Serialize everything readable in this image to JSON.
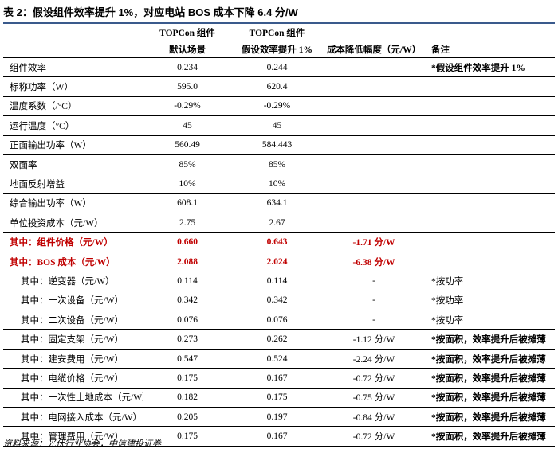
{
  "title": "表 2：假设组件效率提升 1%，对应电站 BOS 成本下降 6.4 分/W",
  "header": {
    "row1": [
      "",
      "TOPCon 组件",
      "TOPCon 组件",
      "",
      ""
    ],
    "row2": [
      "",
      "默认场景",
      "假设效率提升 1%",
      "成本降低幅度（元/W）",
      "备注"
    ]
  },
  "rows": [
    {
      "name": "组件效率",
      "c1": "0.234",
      "c2": "0.244",
      "c3": "",
      "c4": "*假设组件效率提升 1%",
      "style": "note-bold"
    },
    {
      "name": "标称功率（W）",
      "c1": "595.0",
      "c2": "620.4",
      "c3": "",
      "c4": ""
    },
    {
      "name": "温度系数（/°C）",
      "c1": "-0.29%",
      "c2": "-0.29%",
      "c3": "",
      "c4": ""
    },
    {
      "name": "运行温度（°C）",
      "c1": "45",
      "c2": "45",
      "c3": "",
      "c4": ""
    },
    {
      "name": "正面输出功率（W）",
      "c1": "560.49",
      "c2": "584.443",
      "c3": "",
      "c4": ""
    },
    {
      "name": "双面率",
      "c1": "85%",
      "c2": "85%",
      "c3": "",
      "c4": ""
    },
    {
      "name": "地面反射增益",
      "c1": "10%",
      "c2": "10%",
      "c3": "",
      "c4": ""
    },
    {
      "name": "综合输出功率（W）",
      "c1": "608.1",
      "c2": "634.1",
      "c3": "",
      "c4": ""
    },
    {
      "name": "单位投资成本（元/W）",
      "c1": "2.75",
      "c2": "2.67",
      "c3": "",
      "c4": ""
    },
    {
      "name": "其中：组件价格（元/W）",
      "c1": "0.660",
      "c2": "0.643",
      "c3": "-1.71 分/W",
      "c4": "",
      "style": "red"
    },
    {
      "name": "其中：BOS 成本（元/W）",
      "c1": "2.088",
      "c2": "2.024",
      "c3": "-6.38 分/W",
      "c4": "",
      "style": "red"
    },
    {
      "name": "其中：逆变器（元/W）",
      "c1": "0.114",
      "c2": "0.114",
      "c3": "-",
      "c4": "*按功率",
      "style": "indent"
    },
    {
      "name": "其中：一次设备（元/W）",
      "c1": "0.342",
      "c2": "0.342",
      "c3": "-",
      "c4": "*按功率",
      "style": "indent"
    },
    {
      "name": "其中：二次设备（元/W）",
      "c1": "0.076",
      "c2": "0.076",
      "c3": "-",
      "c4": "*按功率",
      "style": "indent"
    },
    {
      "name": "其中：固定支架（元/W）",
      "c1": "0.273",
      "c2": "0.262",
      "c3": "-1.12 分/W",
      "c4": "*按面积，效率提升后被摊薄",
      "style": "indent-boldnote"
    },
    {
      "name": "其中：建安费用（元/W）",
      "c1": "0.547",
      "c2": "0.524",
      "c3": "-2.24 分/W",
      "c4": "*按面积，效率提升后被摊薄",
      "style": "indent-boldnote"
    },
    {
      "name": "其中：电缆价格（元/W）",
      "c1": "0.175",
      "c2": "0.167",
      "c3": "-0.72 分/W",
      "c4": "*按面积，效率提升后被摊薄",
      "style": "indent-boldnote"
    },
    {
      "name": "其中：一次性土地成本（元/W）",
      "c1": "0.182",
      "c2": "0.175",
      "c3": "-0.75 分/W",
      "c4": "*按面积，效率提升后被摊薄",
      "style": "indent-boldnote"
    },
    {
      "name": "其中：电网接入成本（元/W）",
      "c1": "0.205",
      "c2": "0.197",
      "c3": "-0.84 分/W",
      "c4": "*按面积，效率提升后被摊薄",
      "style": "indent-boldnote"
    },
    {
      "name": "其中：管理费用（元/W）",
      "c1": "0.175",
      "c2": "0.167",
      "c3": "-0.72 分/W",
      "c4": "*按面积，效率提升后被摊薄",
      "style": "indent-boldnote"
    }
  ],
  "source": "资料来源：光伏行业协会，中信建投证券"
}
